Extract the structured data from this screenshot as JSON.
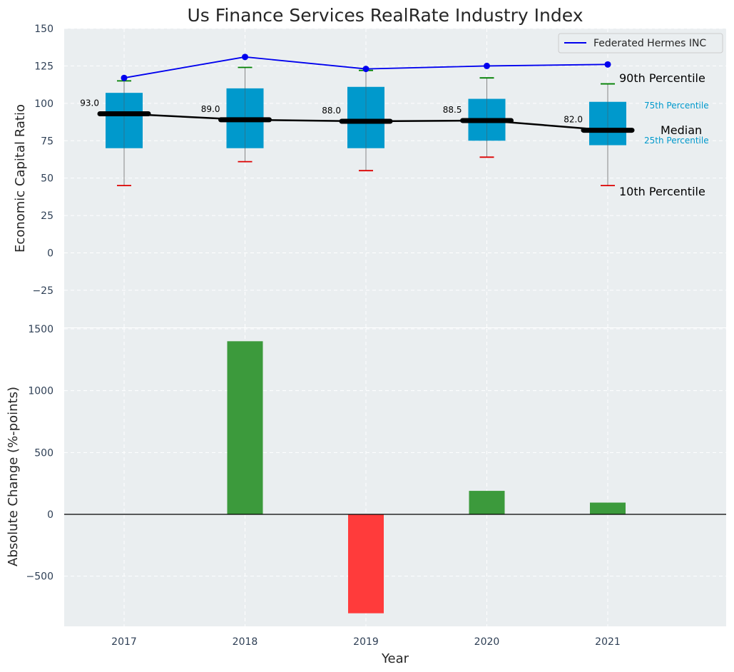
{
  "title": "Us Finance Services RealRate Industry Index",
  "colors": {
    "panel_bg": "#eaeef0",
    "box": "#0099cc",
    "median": "#000000",
    "company": "#0000ee",
    "p90_cap": "#008000",
    "p10_cap": "#dd0000",
    "bar_positive": "#3c9a3c",
    "bar_negative": "#ff3b3b"
  },
  "chart_data": [
    {
      "type": "box",
      "ylabel": "Economic Capital Ratio",
      "ylim": [
        -35,
        150
      ],
      "yticks": [
        -25,
        0,
        25,
        50,
        75,
        100,
        125,
        150
      ],
      "ytick_labels": [
        "−25",
        "0",
        "25",
        "50",
        "75",
        "100",
        "125",
        "150"
      ],
      "categories": [
        "2017",
        "2018",
        "2019",
        "2020",
        "2021"
      ],
      "p10": [
        45,
        61,
        55,
        64,
        45
      ],
      "p25": [
        70,
        70,
        70,
        75,
        72
      ],
      "median": [
        93.0,
        89.0,
        88.0,
        88.5,
        82.0
      ],
      "median_labels": [
        "93.0",
        "89.0",
        "88.0",
        "88.5",
        "82.0"
      ],
      "p75": [
        107,
        110,
        111,
        103,
        101
      ],
      "p90": [
        115,
        124,
        122,
        117,
        113
      ],
      "company_series": {
        "name": "Federated Hermes INC",
        "values": [
          117,
          131,
          123,
          125,
          126
        ]
      },
      "legend": {
        "entries": [
          "Federated Hermes INC"
        ],
        "position": "upper-right"
      },
      "annotations": {
        "p90": "90th Percentile",
        "p75": "75th Percentile",
        "median": "Median",
        "p25": "25th Percentile",
        "p10": "10th Percentile"
      },
      "grid": true
    },
    {
      "type": "bar",
      "xlabel": "Year",
      "ylabel": "Absolute Change (%-points)",
      "ylim": [
        -900,
        1500
      ],
      "yticks": [
        -500,
        0,
        500,
        1000,
        1500
      ],
      "ytick_labels": [
        "−500",
        "0",
        "500",
        "1000",
        "1500"
      ],
      "categories": [
        "2017",
        "2018",
        "2019",
        "2020",
        "2021"
      ],
      "values": [
        0,
        1400,
        -800,
        190,
        95
      ],
      "grid": true
    }
  ]
}
